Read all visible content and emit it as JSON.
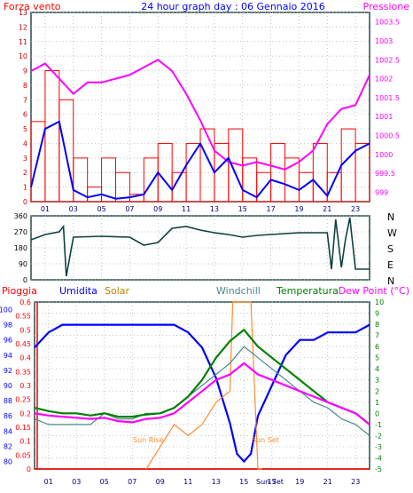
{
  "header": {
    "left_label": "Forza vento",
    "title": "24 hour graph day : 06 Gennaio 2016",
    "right_label": "Pressione"
  },
  "colors": {
    "wind": "#ff0000",
    "gust": "#ff0000",
    "pressure": "#ff00ff",
    "wind_speed_line": "#0000ff",
    "direction": "#104040",
    "rain": "#ff0000",
    "humidity": "#0000ff",
    "solar": "#ff8c30",
    "windchill": "#4a8a8a",
    "temperature": "#008000",
    "dew_point": "#ff00ff",
    "frame": "#2a4a4a",
    "grid": "#a0b0b0"
  },
  "x_ticks": [
    "01",
    "03",
    "05",
    "07",
    "09",
    "11",
    "13",
    "15",
    "17",
    "19",
    "21",
    "23"
  ],
  "wind_panel": {
    "y_left_ticks": [
      "0",
      "1",
      "2",
      "3",
      "4",
      "5",
      "6",
      "7",
      "8",
      "9",
      "10",
      "11",
      "12",
      "13"
    ],
    "y_right_ticks": [
      "999",
      "999.5",
      "1000",
      "1000.5",
      "1001",
      "1001.5",
      "1002",
      "1002.5",
      "1003",
      "1003.5"
    ]
  },
  "dir_panel": {
    "y_left_ticks": [
      "0",
      "90",
      "180",
      "270",
      "360"
    ],
    "compass": [
      "N",
      "W",
      "S",
      "E",
      "N"
    ]
  },
  "bottom_panel": {
    "legend": {
      "rain": "Pioggia",
      "humidity": "Umidita",
      "solar": "Solar",
      "windchill": "Windchill",
      "temperature": "Temperatura",
      "dew_point": "Dew Point (°C)"
    },
    "humidity_ticks": [
      "80",
      "82",
      "84",
      "86",
      "88",
      "90",
      "92",
      "94",
      "96",
      "98",
      "100"
    ],
    "rain_ticks": [
      "0",
      "0.05",
      "0.1",
      "0.15",
      "0.2",
      "0.25",
      "0.3",
      "0.35",
      "0.4",
      "0.45",
      "0.5",
      "0.55",
      "0.6"
    ],
    "temp_ticks": [
      "-5",
      "-4",
      "-3",
      "-2",
      "-1",
      "0",
      "1",
      "2",
      "3",
      "4",
      "5",
      "6",
      "7",
      "8",
      "9",
      "10"
    ],
    "sunrise_label": "Sun Rise",
    "sunset_label": "Sun Set",
    "sunset_axis_label": "Sun Set"
  },
  "chart_data": {
    "type": "line",
    "date": "06 Gennaio 2016",
    "x_unit": "hour",
    "xlim": [
      0,
      24
    ],
    "panels": [
      {
        "name": "wind",
        "ylim": [
          0,
          13
        ],
        "ylim_right": [
          998.75,
          1003.75
        ],
        "series": [
          {
            "name": "Forza vento",
            "axis": "left",
            "x": [
              0,
              1,
              2,
              3,
              4,
              5,
              6,
              7,
              8,
              9,
              10,
              11,
              12,
              13,
              14,
              15,
              16,
              17,
              18,
              19,
              20,
              21,
              22,
              23,
              24
            ],
            "values": [
              5.5,
              9,
              7,
              3,
              1,
              3,
              2,
              0.5,
              3,
              4,
              2,
              4,
              5,
              4,
              5,
              3,
              2,
              4,
              3,
              2,
              4,
              2,
              5,
              4,
              6
            ]
          },
          {
            "name": "Pressione",
            "axis": "right",
            "x": [
              0,
              1,
              2,
              3,
              4,
              5,
              6,
              7,
              8,
              9,
              10,
              11,
              12,
              13,
              14,
              15,
              16,
              17,
              18,
              19,
              20,
              21,
              22,
              23,
              24
            ],
            "values": [
              1002.2,
              1002.4,
              1002.0,
              1001.6,
              1001.9,
              1001.9,
              1002.0,
              1002.1,
              1002.3,
              1002.5,
              1002.2,
              1001.6,
              1000.9,
              1000.1,
              999.8,
              999.7,
              999.8,
              999.7,
              999.6,
              999.8,
              1000.1,
              1000.8,
              1001.2,
              1001.3,
              1002.1
            ]
          },
          {
            "name": "Wind speed",
            "axis": "left",
            "x": [
              0,
              1,
              2,
              3,
              4,
              5,
              6,
              7,
              8,
              9,
              10,
              11,
              12,
              13,
              14,
              15,
              16,
              17,
              18,
              19,
              20,
              21,
              22,
              23,
              24
            ],
            "values": [
              1,
              5,
              5.5,
              0.8,
              0.3,
              0.5,
              0.2,
              0.3,
              0.5,
              2,
              0.8,
              2.5,
              4,
              2,
              3,
              0.8,
              0.3,
              1.5,
              1.2,
              0.8,
              1.5,
              0.4,
              2.5,
              3.5,
              4
            ]
          }
        ]
      },
      {
        "name": "wind direction",
        "ylim": [
          0,
          360
        ],
        "series": [
          {
            "name": "Direction",
            "x": [
              0,
              1,
              2,
              2.3,
              2.5,
              3,
              5,
              7,
              8,
              9,
              10,
              11,
              12,
              13,
              14,
              15,
              16,
              17,
              18,
              19,
              20,
              21,
              21.3,
              21.6,
              22,
              22.3,
              22.6,
              23,
              24
            ],
            "values": [
              225,
              255,
              270,
              300,
              20,
              240,
              245,
              240,
              195,
              210,
              290,
              300,
              280,
              265,
              255,
              240,
              250,
              255,
              260,
              265,
              265,
              265,
              60,
              340,
              70,
              230,
              350,
              60,
              60
            ]
          }
        ]
      },
      {
        "name": "humidity, rain, solar, temperature",
        "ylim": [
          79,
          101
        ],
        "ylim_right": [
          -5,
          10
        ],
        "series": [
          {
            "name": "Umidita",
            "axis": "humidity",
            "x": [
              0,
              1,
              2,
              3,
              4,
              5,
              6,
              7,
              8,
              9,
              10,
              11,
              12,
              13,
              14,
              14.5,
              15,
              15.5,
              16,
              17,
              18,
              19,
              20,
              21,
              22,
              23,
              24
            ],
            "values": [
              95,
              97,
              98,
              98,
              98,
              98,
              98,
              98,
              98,
              98,
              98,
              97,
              95,
              91,
              85,
              81,
              80,
              81,
              86,
              90,
              94,
              96,
              96,
              97,
              97,
              97,
              98
            ]
          },
          {
            "name": "Pioggia",
            "axis": "rain",
            "x": [
              0,
              24
            ],
            "values": [
              0,
              0
            ]
          },
          {
            "name": "Solar",
            "axis": "temp",
            "x": [
              8,
              9,
              10,
              11,
              12,
              13,
              14,
              14.2,
              15,
              15.5,
              16,
              16.3
            ],
            "values": [
              -5,
              -3,
              -1,
              -2,
              -1,
              1,
              2,
              10,
              10,
              10,
              -5,
              -5
            ]
          },
          {
            "name": "Windchill",
            "axis": "temp",
            "x": [
              0,
              1,
              2,
              3,
              4,
              5,
              6,
              7,
              8,
              9,
              10,
              11,
              12,
              13,
              14,
              15,
              16,
              17,
              18,
              19,
              20,
              21,
              22,
              23,
              24
            ],
            "values": [
              -0.5,
              -1,
              -1,
              -1,
              -1,
              0,
              -0.5,
              -0.5,
              0,
              0,
              0.5,
              1.5,
              2.5,
              3.5,
              4.5,
              6,
              5,
              4,
              3,
              2,
              1,
              0.5,
              -0.5,
              -1,
              -2
            ]
          },
          {
            "name": "Temperatura",
            "axis": "temp",
            "x": [
              0,
              1,
              2,
              3,
              4,
              5,
              6,
              7,
              8,
              9,
              10,
              11,
              12,
              13,
              14,
              15,
              16,
              17,
              18,
              19,
              20,
              21,
              22,
              23,
              24
            ],
            "values": [
              0.5,
              0.2,
              0,
              0,
              -0.2,
              0,
              -0.3,
              -0.3,
              -0.1,
              0,
              0.5,
              1.5,
              3,
              5,
              6.5,
              7.5,
              6,
              5,
              4,
              3,
              2,
              1,
              0.5,
              0,
              -1
            ]
          },
          {
            "name": "Dew Point",
            "axis": "temp",
            "x": [
              0,
              1,
              2,
              3,
              4,
              5,
              6,
              7,
              8,
              9,
              10,
              11,
              12,
              13,
              14,
              15,
              16,
              17,
              18,
              19,
              20,
              21,
              22,
              23,
              24
            ],
            "values": [
              0,
              -0.2,
              -0.3,
              -0.4,
              -0.5,
              -0.4,
              -0.7,
              -0.8,
              -0.5,
              -0.4,
              0,
              1,
              2,
              3,
              3.5,
              4.5,
              3.5,
              3,
              2.5,
              2,
              1.5,
              1,
              0.5,
              0,
              -1
            ]
          }
        ]
      }
    ]
  }
}
